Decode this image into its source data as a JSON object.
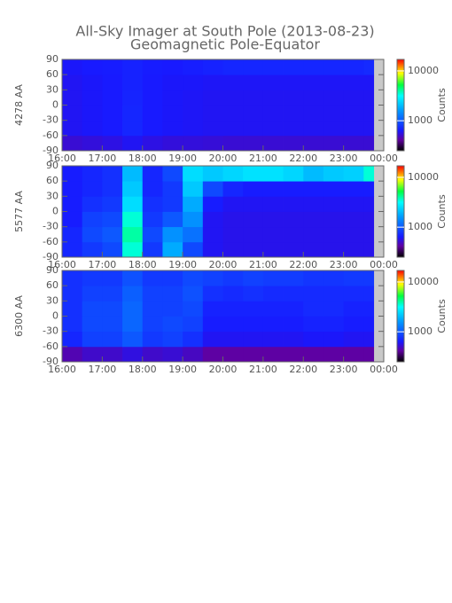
{
  "title": "All-Sky Imager at South Pole (2013-08-23)",
  "subtitle": "Geomagnetic Pole-Equator",
  "chart_data": [
    {
      "type": "heatmap",
      "ylabel": "4278 AA",
      "colorbar_label": "Counts",
      "xlim": [
        16,
        24
      ],
      "xticks": [
        {
          "value": 16,
          "label": "16:00"
        },
        {
          "value": 17,
          "label": "17:00"
        },
        {
          "value": 18,
          "label": "18:00"
        },
        {
          "value": 19,
          "label": "19:00"
        },
        {
          "value": 20,
          "label": "20:00"
        },
        {
          "value": 21,
          "label": "21:00"
        },
        {
          "value": 22,
          "label": "22:00"
        },
        {
          "value": 23,
          "label": "23:00"
        },
        {
          "value": 24,
          "label": "00:00"
        }
      ],
      "ylim": [
        -90,
        90
      ],
      "yticks": [
        90,
        60,
        30,
        0,
        -30,
        -60,
        -90
      ],
      "xbins": [
        16,
        16.5,
        17,
        17.5,
        18,
        18.5,
        19,
        19.5,
        20,
        20.5,
        21,
        21.5,
        22,
        22.5,
        23,
        23.5,
        23.75
      ],
      "ybins": [
        -90,
        -60,
        -30,
        0,
        30,
        60,
        90
      ],
      "values": [
        [
          520,
          540,
          560,
          600,
          560,
          540,
          540,
          530,
          520,
          520,
          520,
          520,
          520,
          520,
          520,
          520
        ],
        [
          600,
          620,
          640,
          700,
          640,
          620,
          610,
          600,
          600,
          600,
          600,
          600,
          600,
          600,
          600,
          600
        ],
        [
          600,
          620,
          640,
          700,
          640,
          620,
          610,
          600,
          600,
          600,
          600,
          600,
          600,
          600,
          600,
          600
        ],
        [
          600,
          620,
          640,
          690,
          640,
          620,
          610,
          600,
          600,
          600,
          600,
          600,
          600,
          600,
          600,
          600
        ],
        [
          600,
          620,
          640,
          680,
          640,
          620,
          620,
          610,
          610,
          610,
          610,
          610,
          610,
          610,
          610,
          610
        ],
        [
          620,
          640,
          650,
          680,
          650,
          640,
          660,
          680,
          700,
          700,
          700,
          700,
          700,
          700,
          700,
          720
        ]
      ],
      "clim": [
        250,
        17000
      ],
      "log_color": true,
      "cticks": [
        1000,
        10000
      ],
      "colormap": [
        [
          0,
          "#000000"
        ],
        [
          0.12,
          "#6000a0"
        ],
        [
          0.22,
          "#1818ff"
        ],
        [
          0.45,
          "#00a0ff"
        ],
        [
          0.6,
          "#00ffff"
        ],
        [
          0.72,
          "#00ff40"
        ],
        [
          0.85,
          "#ffff00"
        ],
        [
          1,
          "#ff0000"
        ]
      ]
    },
    {
      "type": "heatmap",
      "ylabel": "5577 AA",
      "colorbar_label": "Counts",
      "xlim": [
        16,
        24
      ],
      "xticks": [
        {
          "value": 16,
          "label": "16:00"
        },
        {
          "value": 17,
          "label": "17:00"
        },
        {
          "value": 18,
          "label": "18:00"
        },
        {
          "value": 19,
          "label": "19:00"
        },
        {
          "value": 20,
          "label": "20:00"
        },
        {
          "value": 21,
          "label": "21:00"
        },
        {
          "value": 22,
          "label": "22:00"
        },
        {
          "value": 23,
          "label": "23:00"
        },
        {
          "value": 24,
          "label": "00:00"
        }
      ],
      "ylim": [
        -90,
        90
      ],
      "yticks": [
        90,
        60,
        30,
        0,
        -30,
        -60,
        -90
      ],
      "xbins": [
        16,
        16.5,
        17,
        17.5,
        18,
        18.5,
        19,
        19.5,
        20,
        20.5,
        21,
        21.5,
        22,
        22.5,
        23,
        23.5,
        23.75
      ],
      "ybins": [
        -90,
        -60,
        -30,
        0,
        30,
        60,
        90
      ],
      "values": [
        [
          700,
          800,
          900,
          3500,
          800,
          1800,
          900,
          600,
          580,
          580,
          580,
          580,
          580,
          580,
          580,
          580
        ],
        [
          700,
          900,
          1000,
          4000,
          900,
          1500,
          1200,
          600,
          580,
          580,
          580,
          580,
          580,
          580,
          580,
          580
        ],
        [
          650,
          850,
          900,
          3500,
          800,
          1000,
          1500,
          600,
          580,
          580,
          580,
          580,
          580,
          580,
          580,
          580
        ],
        [
          650,
          750,
          800,
          2500,
          750,
          800,
          1800,
          650,
          600,
          600,
          600,
          600,
          600,
          600,
          600,
          600
        ],
        [
          650,
          700,
          750,
          2200,
          700,
          800,
          2200,
          900,
          700,
          650,
          650,
          650,
          650,
          650,
          650,
          650
        ],
        [
          650,
          700,
          750,
          2000,
          700,
          900,
          2500,
          2200,
          2400,
          2600,
          2600,
          2400,
          2000,
          2200,
          2300,
          3500
        ]
      ],
      "clim": [
        250,
        17000
      ],
      "log_color": true,
      "cticks": [
        1000,
        10000
      ],
      "colormap": [
        [
          0,
          "#000000"
        ],
        [
          0.12,
          "#6000a0"
        ],
        [
          0.22,
          "#1818ff"
        ],
        [
          0.45,
          "#00a0ff"
        ],
        [
          0.6,
          "#00ffff"
        ],
        [
          0.72,
          "#00ff40"
        ],
        [
          0.85,
          "#ffff00"
        ],
        [
          1,
          "#ff0000"
        ]
      ]
    },
    {
      "type": "heatmap",
      "ylabel": "6300 AA",
      "colorbar_label": "Counts",
      "xlim": [
        16,
        24
      ],
      "xticks": [
        {
          "value": 16,
          "label": "16:00"
        },
        {
          "value": 17,
          "label": "17:00"
        },
        {
          "value": 18,
          "label": "18:00"
        },
        {
          "value": 19,
          "label": "19:00"
        },
        {
          "value": 20,
          "label": "20:00"
        },
        {
          "value": 21,
          "label": "21:00"
        },
        {
          "value": 22,
          "label": "22:00"
        },
        {
          "value": 23,
          "label": "23:00"
        },
        {
          "value": 24,
          "label": "00:00"
        }
      ],
      "ylim": [
        -90,
        90
      ],
      "yticks": [
        90,
        60,
        30,
        0,
        -30,
        -60,
        -90
      ],
      "xbins": [
        16,
        16.5,
        17,
        17.5,
        18,
        18.5,
        19,
        19.5,
        20,
        20.5,
        21,
        21.5,
        22,
        22.5,
        23,
        23.5,
        23.75
      ],
      "ybins": [
        -90,
        -60,
        -30,
        0,
        30,
        60,
        90
      ],
      "values": [
        [
          450,
          500,
          500,
          550,
          500,
          520,
          480,
          420,
          420,
          420,
          420,
          420,
          420,
          420,
          420,
          420
        ],
        [
          700,
          850,
          850,
          1000,
          800,
          850,
          750,
          600,
          600,
          600,
          600,
          600,
          620,
          620,
          600,
          600
        ],
        [
          750,
          900,
          900,
          1100,
          850,
          900,
          850,
          650,
          650,
          650,
          650,
          650,
          680,
          680,
          650,
          650
        ],
        [
          750,
          900,
          900,
          1100,
          850,
          850,
          900,
          680,
          680,
          680,
          680,
          680,
          720,
          720,
          680,
          680
        ],
        [
          750,
          850,
          850,
          1050,
          850,
          850,
          950,
          750,
          720,
          750,
          720,
          720,
          720,
          720,
          720,
          720
        ],
        [
          750,
          800,
          800,
          950,
          800,
          800,
          900,
          850,
          800,
          850,
          820,
          820,
          780,
          780,
          800,
          800
        ]
      ],
      "clim": [
        250,
        17000
      ],
      "log_color": true,
      "cticks": [
        1000,
        10000
      ],
      "colormap": [
        [
          0,
          "#000000"
        ],
        [
          0.12,
          "#6000a0"
        ],
        [
          0.22,
          "#1818ff"
        ],
        [
          0.45,
          "#00a0ff"
        ],
        [
          0.6,
          "#00ffff"
        ],
        [
          0.72,
          "#00ff40"
        ],
        [
          0.85,
          "#ffff00"
        ],
        [
          1,
          "#ff0000"
        ]
      ]
    }
  ]
}
